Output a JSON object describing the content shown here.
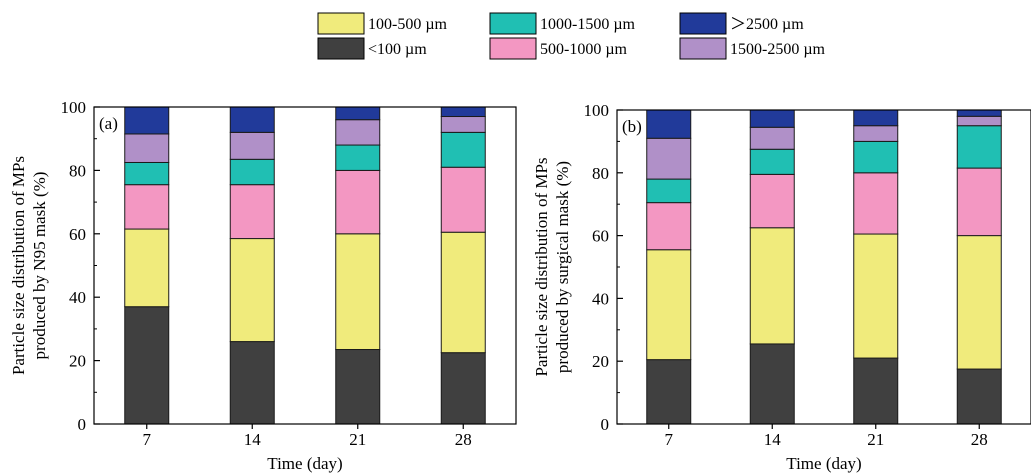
{
  "legend": {
    "items": [
      {
        "label": "100-500 µm",
        "color": "#f0eb7c"
      },
      {
        "label": "1000-1500 µm",
        "color": "#20bfb3"
      },
      {
        "label": "＞2500 µm",
        "color": "#213a9a"
      },
      {
        "label": "<100 µm",
        "color": "#404040"
      },
      {
        "label": "500-1000 µm",
        "color": "#f397c2"
      },
      {
        "label": "1500-2500 µm",
        "color": "#b090c8"
      }
    ]
  },
  "chart_data": [
    {
      "type": "bar",
      "stacked": true,
      "panel_label": "(a)",
      "xlabel": "Time (day)",
      "ylabel": [
        "Particle size distribution of MPs",
        "produced by N95 mask (%)"
      ],
      "categories": [
        "7",
        "14",
        "21",
        "28"
      ],
      "ylim": [
        0,
        100
      ],
      "yticks": [
        0,
        20,
        40,
        60,
        80,
        100
      ],
      "series": [
        {
          "name": "<100 µm",
          "color": "#404040",
          "values": [
            37,
            26,
            23.5,
            22.5
          ]
        },
        {
          "name": "100-500 µm",
          "color": "#f0eb7c",
          "values": [
            24.5,
            32.5,
            36.5,
            38
          ]
        },
        {
          "name": "500-1000 µm",
          "color": "#f397c2",
          "values": [
            14,
            17,
            20,
            20.5
          ]
        },
        {
          "name": "1000-1500 µm",
          "color": "#20bfb3",
          "values": [
            7,
            8,
            8,
            11
          ]
        },
        {
          "name": "1500-2500 µm",
          "color": "#b090c8",
          "values": [
            9,
            8.5,
            8,
            5
          ]
        },
        {
          "name": "＞2500 µm",
          "color": "#213a9a",
          "values": [
            8.5,
            8,
            4,
            3
          ]
        }
      ]
    },
    {
      "type": "bar",
      "stacked": true,
      "panel_label": "(b)",
      "xlabel": "Time (day)",
      "ylabel": [
        "Particle size distribution of MPs",
        "produced by surgical mask (%)"
      ],
      "categories": [
        "7",
        "14",
        "21",
        "28"
      ],
      "ylim": [
        0,
        100
      ],
      "yticks": [
        0,
        20,
        40,
        60,
        80,
        100
      ],
      "series": [
        {
          "name": "<100 µm",
          "color": "#404040",
          "values": [
            20.5,
            25.5,
            21,
            17.5
          ]
        },
        {
          "name": "100-500 µm",
          "color": "#f0eb7c",
          "values": [
            35,
            37,
            39.5,
            42.5
          ]
        },
        {
          "name": "500-1000 µm",
          "color": "#f397c2",
          "values": [
            15,
            17,
            19.5,
            21.5
          ]
        },
        {
          "name": "1000-1500 µm",
          "color": "#20bfb3",
          "values": [
            7.5,
            8,
            10,
            13.5
          ]
        },
        {
          "name": "1500-2500 µm",
          "color": "#b090c8",
          "values": [
            13,
            7,
            5,
            3
          ]
        },
        {
          "name": "＞2500 µm",
          "color": "#213a9a",
          "values": [
            9,
            5.5,
            5,
            2
          ]
        }
      ]
    }
  ]
}
